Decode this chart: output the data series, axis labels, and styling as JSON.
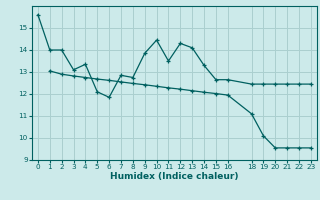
{
  "xlabel": "Humidex (Indice chaleur)",
  "background_color": "#cceaea",
  "grid_color": "#aacfcf",
  "line_color": "#006060",
  "line1_x": [
    0,
    1,
    2,
    3,
    4,
    5,
    6,
    7,
    8,
    9,
    10,
    11,
    12,
    13,
    14,
    15,
    16,
    18,
    19,
    20,
    21,
    22,
    23
  ],
  "line1_y": [
    15.6,
    14.0,
    14.0,
    13.1,
    13.35,
    12.1,
    11.85,
    12.85,
    12.75,
    13.85,
    14.45,
    13.5,
    14.3,
    14.1,
    13.3,
    12.65,
    12.65,
    12.45,
    12.45,
    12.45,
    12.45,
    12.45,
    12.45
  ],
  "line2_x": [
    1,
    2,
    3,
    4,
    5,
    6,
    7,
    8,
    9,
    10,
    11,
    12,
    13,
    14,
    15,
    16,
    18,
    19,
    20,
    21,
    22,
    23
  ],
  "line2_y": [
    13.05,
    12.9,
    12.82,
    12.75,
    12.68,
    12.62,
    12.55,
    12.48,
    12.42,
    12.35,
    12.28,
    12.22,
    12.15,
    12.08,
    12.02,
    11.95,
    11.1,
    10.1,
    9.55,
    9.55,
    9.55,
    9.55
  ],
  "ylim": [
    9,
    16
  ],
  "xlim": [
    -0.5,
    23.5
  ],
  "yticks": [
    9,
    10,
    11,
    12,
    13,
    14,
    15
  ],
  "xticks": [
    0,
    1,
    2,
    3,
    4,
    5,
    6,
    7,
    8,
    9,
    10,
    11,
    12,
    13,
    14,
    15,
    16,
    18,
    19,
    20,
    21,
    22,
    23
  ],
  "xtick_labels": [
    "0",
    "1",
    "2",
    "3",
    "4",
    "5",
    "6",
    "7",
    "8",
    "9",
    "10",
    "11",
    "12",
    "13",
    "14",
    "15",
    "16",
    "18",
    "19",
    "20",
    "21",
    "22",
    "23"
  ]
}
